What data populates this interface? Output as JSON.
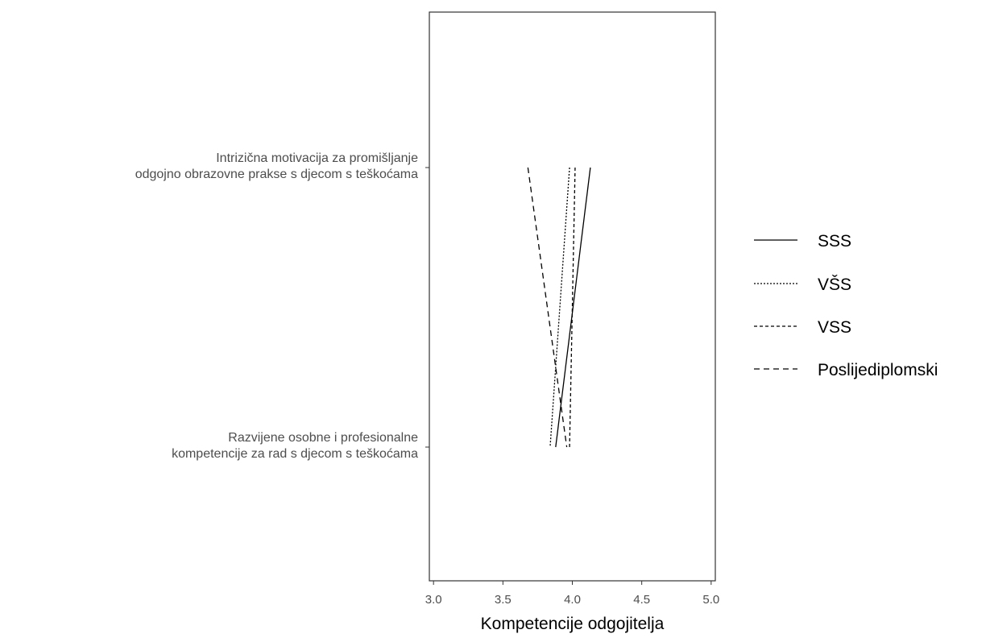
{
  "chart_data": {
    "type": "line",
    "orientation": "horizontal",
    "title": "",
    "xlabel": "Kompetencije odgojitelja",
    "ylabel": "",
    "xlim": [
      2.97,
      5.03
    ],
    "xticks": [
      3.0,
      3.5,
      4.0,
      4.5,
      5.0
    ],
    "xtick_labels": [
      "3.0",
      "3.5",
      "4.0",
      "4.5",
      "5.0"
    ],
    "categories": [
      [
        "Intrizična motivacija za promišljanje",
        "odgojno obrazovne prakse s djecom s teškoćama"
      ],
      [
        "Razvijene osobne i profesionalne",
        "kompetencije za rad s djecom s teškoćama"
      ]
    ],
    "series": [
      {
        "name": "SSS",
        "values": [
          4.13,
          3.88
        ],
        "dash": "solid"
      },
      {
        "name": "VŠS",
        "values": [
          3.98,
          3.84
        ],
        "dash": "dotted"
      },
      {
        "name": "VSS",
        "values": [
          4.02,
          3.98
        ],
        "dash": "dashed"
      },
      {
        "name": "Poslijediplomski",
        "values": [
          3.68,
          3.96
        ],
        "dash": "longdash"
      }
    ],
    "grid": false,
    "legend_position": "right"
  }
}
